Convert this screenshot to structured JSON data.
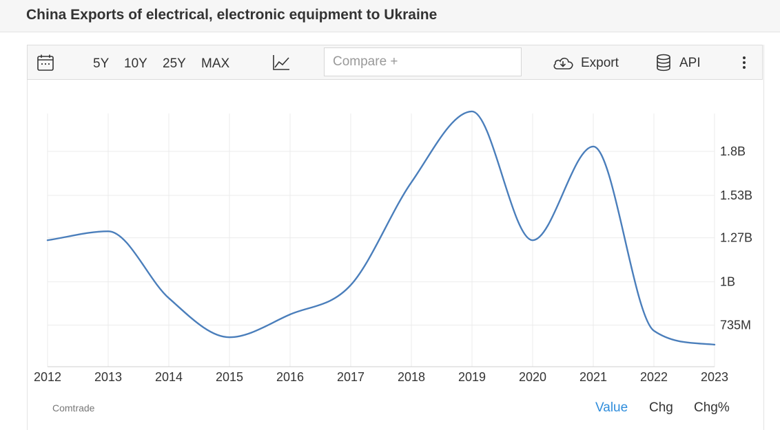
{
  "header": {
    "title": "China Exports of electrical, electronic equipment to Ukraine"
  },
  "toolbar": {
    "calendar_icon": "calendar-icon",
    "ranges": [
      "5Y",
      "10Y",
      "25Y",
      "MAX"
    ],
    "chart_type_icon": "line-chart-icon",
    "compare_placeholder": "Compare +",
    "export_label": "Export",
    "export_icon": "cloud-download-icon",
    "api_label": "API",
    "api_icon": "database-icon",
    "more_icon": "vertical-dots-icon"
  },
  "footer": {
    "source": "Comtrade",
    "views": [
      "Value",
      "Chg",
      "Chg%"
    ],
    "active_view": "Value"
  },
  "chart_data": {
    "type": "line",
    "x": [
      2012,
      2013,
      2014,
      2015,
      2016,
      2017,
      2018,
      2019,
      2020,
      2021,
      2022,
      2023
    ],
    "series": [
      {
        "values": [
          1.255,
          1.31,
          0.9,
          0.66,
          0.8,
          0.98,
          1.61,
          2.045,
          1.255,
          1.83,
          0.7,
          0.615
        ]
      }
    ],
    "y_ticks": [
      {
        "value": 0.735,
        "label": "735M"
      },
      {
        "value": 1.0,
        "label": "1B"
      },
      {
        "value": 1.27,
        "label": "1.27B"
      },
      {
        "value": 1.53,
        "label": "1.53B"
      },
      {
        "value": 1.8,
        "label": "1.8B"
      }
    ],
    "x_tick_labels": [
      "2012",
      "2013",
      "2014",
      "2015",
      "2016",
      "2017",
      "2018",
      "2019",
      "2020",
      "2021",
      "2022",
      "2023"
    ],
    "ylim": [
      0.5,
      2.1
    ],
    "y_axis_position": "right",
    "grid": true,
    "line_color": "#4a7ebb"
  }
}
